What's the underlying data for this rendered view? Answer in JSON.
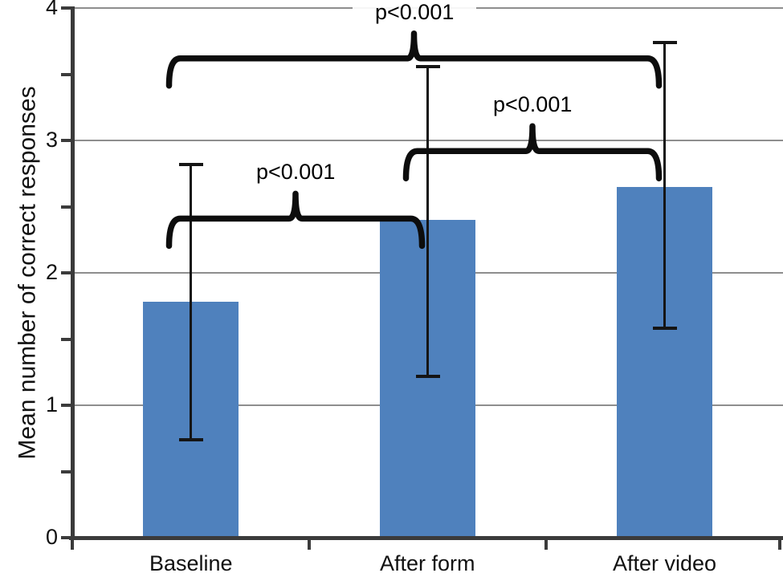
{
  "chart_data": {
    "type": "bar",
    "title": "",
    "xlabel": "",
    "ylabel": "Mean number of correct responses",
    "categories": [
      "Baseline",
      "After form",
      "After video"
    ],
    "series": [
      {
        "name": "Mean number of correct responses",
        "values": [
          1.78,
          2.4,
          2.65
        ],
        "error_low": [
          0.74,
          1.22,
          1.58
        ],
        "error_high": [
          2.82,
          3.56,
          3.74
        ]
      }
    ],
    "ylim": [
      0,
      4
    ],
    "y_tick_labels": [
      "0",
      "1",
      "2",
      "3",
      "4"
    ],
    "y_major_step": 1,
    "y_minor_step": 0.5,
    "grid": "horizontal-major",
    "legend": "none",
    "colors": {
      "bar": "#4f81bd",
      "grid": "#8e8e8e",
      "axis": "#3b3b3b",
      "error_bar": "#151515",
      "bracket": "#0d0d0d",
      "text": "#111111",
      "background": "#ffffff"
    },
    "significance_brackets": [
      {
        "from": 0,
        "to": 1,
        "level": 2.41,
        "label": "p<0.001"
      },
      {
        "from": 1,
        "to": 2,
        "level": 2.92,
        "label": "p<0.001"
      },
      {
        "from": 0,
        "to": 2,
        "level": 3.62,
        "label": "p<0.001"
      }
    ]
  }
}
